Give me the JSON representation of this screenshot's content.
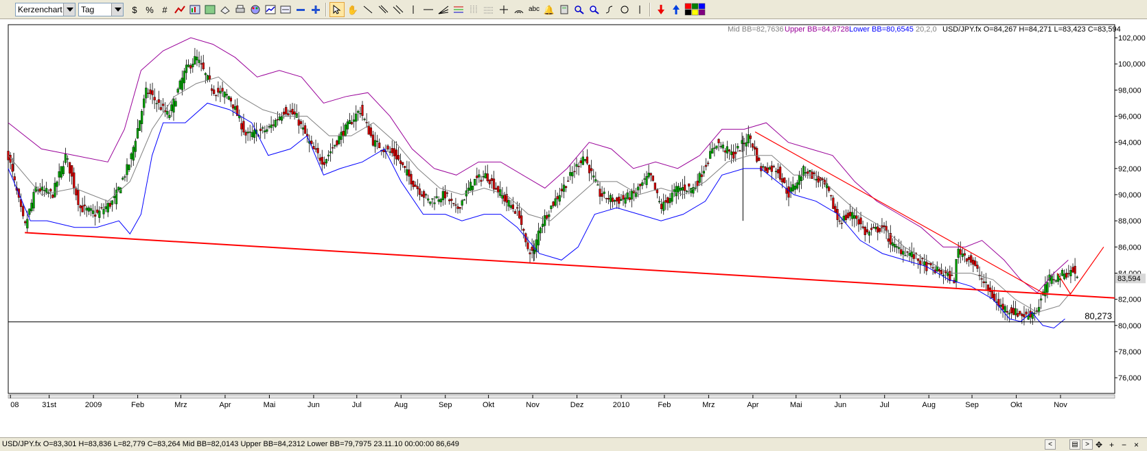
{
  "toolbar": {
    "chart_type": "Kerzenchart",
    "period": "Tag",
    "color_swatches": [
      "#ff0000",
      "#008000",
      "#0000ff",
      "#000000",
      "#ffff00",
      "#800080"
    ]
  },
  "header": {
    "mid_bb": "Mid BB=82,7636",
    "upper_bb": "Upper BB=84,8728",
    "lower_bb": "Lower BB=80,6545",
    "bb_params": "20,2,0",
    "ohlc": "USD/JPY.fx O=84,267 H=84,271 L=83,423 C=83,594"
  },
  "chart_data": {
    "type": "candlestick",
    "symbol": "USD/JPY.fx",
    "ylim": [
      74.8,
      103.0
    ],
    "y_ticks": [
      "102,000",
      "100,000",
      "98,000",
      "96,000",
      "94,000",
      "92,000",
      "90,000",
      "88,000",
      "86,000",
      "84,000",
      "82,000",
      "80,000",
      "78,000",
      "76,000"
    ],
    "x_ticks": [
      {
        "label": "08",
        "pos": 0.002
      },
      {
        "label": "31st",
        "pos": 0.037
      },
      {
        "label": "2009",
        "pos": 0.077
      },
      {
        "label": "Feb",
        "pos": 0.117
      },
      {
        "label": "Mrz",
        "pos": 0.156
      },
      {
        "label": "Apr",
        "pos": 0.196
      },
      {
        "label": "Mai",
        "pos": 0.236
      },
      {
        "label": "Jun",
        "pos": 0.276
      },
      {
        "label": "Jul",
        "pos": 0.315
      },
      {
        "label": "Aug",
        "pos": 0.355
      },
      {
        "label": "Sep",
        "pos": 0.395
      },
      {
        "label": "Okt",
        "pos": 0.434
      },
      {
        "label": "Nov",
        "pos": 0.474
      },
      {
        "label": "Dez",
        "pos": 0.514
      },
      {
        "label": "2010",
        "pos": 0.554
      },
      {
        "label": "Feb",
        "pos": 0.593
      },
      {
        "label": "Mrz",
        "pos": 0.633
      },
      {
        "label": "Apr",
        "pos": 0.673
      },
      {
        "label": "Mai",
        "pos": 0.712
      },
      {
        "label": "Jun",
        "pos": 0.752
      },
      {
        "label": "Jul",
        "pos": 0.792
      },
      {
        "label": "Aug",
        "pos": 0.832
      },
      {
        "label": "Sep",
        "pos": 0.871
      },
      {
        "label": "Okt",
        "pos": 0.911
      },
      {
        "label": "Nov",
        "pos": 0.951
      }
    ],
    "close_path": [
      [
        0.0,
        93.0
      ],
      [
        0.015,
        87.5
      ],
      [
        0.025,
        90.5
      ],
      [
        0.04,
        90.0
      ],
      [
        0.052,
        93.0
      ],
      [
        0.065,
        89.0
      ],
      [
        0.08,
        88.5
      ],
      [
        0.095,
        89.5
      ],
      [
        0.11,
        92.5
      ],
      [
        0.125,
        98.0
      ],
      [
        0.145,
        96.0
      ],
      [
        0.16,
        99.5
      ],
      [
        0.17,
        100.5
      ],
      [
        0.185,
        98.0
      ],
      [
        0.2,
        97.5
      ],
      [
        0.215,
        94.5
      ],
      [
        0.235,
        95.0
      ],
      [
        0.25,
        96.5
      ],
      [
        0.26,
        96.0
      ],
      [
        0.275,
        93.5
      ],
      [
        0.285,
        92.5
      ],
      [
        0.3,
        94.5
      ],
      [
        0.318,
        96.5
      ],
      [
        0.33,
        94.0
      ],
      [
        0.35,
        93.0
      ],
      [
        0.365,
        91.0
      ],
      [
        0.38,
        89.5
      ],
      [
        0.395,
        90.0
      ],
      [
        0.405,
        88.8
      ],
      [
        0.42,
        91.0
      ],
      [
        0.432,
        91.5
      ],
      [
        0.45,
        89.5
      ],
      [
        0.462,
        88.5
      ],
      [
        0.468,
        86.0
      ],
      [
        0.475,
        85.5
      ],
      [
        0.48,
        87.5
      ],
      [
        0.49,
        89.0
      ],
      [
        0.505,
        91.0
      ],
      [
        0.52,
        93.0
      ],
      [
        0.535,
        90.0
      ],
      [
        0.55,
        89.5
      ],
      [
        0.565,
        90.0
      ],
      [
        0.58,
        91.5
      ],
      [
        0.59,
        89.0
      ],
      [
        0.605,
        90.5
      ],
      [
        0.62,
        90.5
      ],
      [
        0.64,
        94.0
      ],
      [
        0.655,
        93.0
      ],
      [
        0.67,
        94.5
      ],
      [
        0.68,
        92.0
      ],
      [
        0.695,
        92.0
      ],
      [
        0.705,
        90.0
      ],
      [
        0.72,
        92.0
      ],
      [
        0.74,
        90.5
      ],
      [
        0.75,
        88.0
      ],
      [
        0.765,
        88.5
      ],
      [
        0.775,
        87.0
      ],
      [
        0.79,
        87.5
      ],
      [
        0.8,
        86.0
      ],
      [
        0.815,
        85.5
      ],
      [
        0.83,
        84.5
      ],
      [
        0.845,
        84.0
      ],
      [
        0.855,
        83.5
      ],
      [
        0.858,
        85.8
      ],
      [
        0.87,
        85.0
      ],
      [
        0.88,
        83.5
      ],
      [
        0.895,
        81.5
      ],
      [
        0.91,
        81.0
      ],
      [
        0.92,
        80.7
      ],
      [
        0.93,
        81.2
      ],
      [
        0.94,
        83.5
      ],
      [
        0.95,
        83.8
      ],
      [
        0.962,
        84.2
      ],
      [
        0.966,
        83.6
      ]
    ],
    "bollinger_upper": [
      [
        0.0,
        95.5
      ],
      [
        0.03,
        93.5
      ],
      [
        0.06,
        93.0
      ],
      [
        0.09,
        92.5
      ],
      [
        0.105,
        95.0
      ],
      [
        0.12,
        99.5
      ],
      [
        0.14,
        101.0
      ],
      [
        0.165,
        102.0
      ],
      [
        0.185,
        101.5
      ],
      [
        0.205,
        100.5
      ],
      [
        0.225,
        99.0
      ],
      [
        0.245,
        99.5
      ],
      [
        0.265,
        99.0
      ],
      [
        0.285,
        97.0
      ],
      [
        0.305,
        97.5
      ],
      [
        0.325,
        97.8
      ],
      [
        0.345,
        96.0
      ],
      [
        0.365,
        93.5
      ],
      [
        0.385,
        92.0
      ],
      [
        0.405,
        91.5
      ],
      [
        0.425,
        92.5
      ],
      [
        0.445,
        92.5
      ],
      [
        0.465,
        91.5
      ],
      [
        0.485,
        90.5
      ],
      [
        0.505,
        92.0
      ],
      [
        0.525,
        94.0
      ],
      [
        0.545,
        93.5
      ],
      [
        0.565,
        92.0
      ],
      [
        0.585,
        92.5
      ],
      [
        0.605,
        92.0
      ],
      [
        0.625,
        93.0
      ],
      [
        0.645,
        95.0
      ],
      [
        0.665,
        95.0
      ],
      [
        0.685,
        95.5
      ],
      [
        0.705,
        94.0
      ],
      [
        0.725,
        93.5
      ],
      [
        0.745,
        93.0
      ],
      [
        0.765,
        91.0
      ],
      [
        0.785,
        89.5
      ],
      [
        0.805,
        88.5
      ],
      [
        0.825,
        87.5
      ],
      [
        0.845,
        86.0
      ],
      [
        0.865,
        86.0
      ],
      [
        0.88,
        86.5
      ],
      [
        0.9,
        85.0
      ],
      [
        0.915,
        83.5
      ],
      [
        0.93,
        82.5
      ],
      [
        0.945,
        84.0
      ],
      [
        0.958,
        85.0
      ]
    ],
    "bollinger_mid": [
      [
        0.0,
        93.0
      ],
      [
        0.03,
        90.0
      ],
      [
        0.06,
        90.5
      ],
      [
        0.09,
        89.5
      ],
      [
        0.11,
        91.0
      ],
      [
        0.13,
        95.0
      ],
      [
        0.15,
        97.5
      ],
      [
        0.17,
        98.5
      ],
      [
        0.19,
        99.0
      ],
      [
        0.21,
        97.5
      ],
      [
        0.23,
        96.5
      ],
      [
        0.25,
        96.0
      ],
      [
        0.27,
        96.0
      ],
      [
        0.29,
        94.5
      ],
      [
        0.31,
        94.5
      ],
      [
        0.33,
        95.5
      ],
      [
        0.35,
        94.0
      ],
      [
        0.37,
        92.0
      ],
      [
        0.39,
        90.5
      ],
      [
        0.41,
        90.0
      ],
      [
        0.43,
        90.5
      ],
      [
        0.45,
        90.0
      ],
      [
        0.47,
        88.5
      ],
      [
        0.49,
        88.0
      ],
      [
        0.51,
        89.5
      ],
      [
        0.53,
        91.0
      ],
      [
        0.55,
        91.0
      ],
      [
        0.57,
        90.0
      ],
      [
        0.59,
        90.5
      ],
      [
        0.61,
        90.0
      ],
      [
        0.63,
        91.0
      ],
      [
        0.65,
        92.5
      ],
      [
        0.67,
        93.0
      ],
      [
        0.69,
        93.0
      ],
      [
        0.71,
        91.5
      ],
      [
        0.73,
        91.5
      ],
      [
        0.75,
        90.0
      ],
      [
        0.77,
        88.5
      ],
      [
        0.79,
        87.5
      ],
      [
        0.81,
        86.0
      ],
      [
        0.83,
        85.0
      ],
      [
        0.85,
        84.0
      ],
      [
        0.87,
        84.0
      ],
      [
        0.89,
        83.5
      ],
      [
        0.91,
        82.0
      ],
      [
        0.93,
        81.0
      ],
      [
        0.95,
        81.5
      ],
      [
        0.96,
        82.5
      ]
    ],
    "bollinger_lower": [
      [
        0.0,
        92.0
      ],
      [
        0.02,
        88.0
      ],
      [
        0.035,
        88.0
      ],
      [
        0.06,
        87.5
      ],
      [
        0.08,
        87.5
      ],
      [
        0.1,
        88.0
      ],
      [
        0.11,
        87.0
      ],
      [
        0.12,
        88.5
      ],
      [
        0.13,
        93.0
      ],
      [
        0.14,
        95.5
      ],
      [
        0.16,
        95.5
      ],
      [
        0.18,
        97.0
      ],
      [
        0.2,
        96.5
      ],
      [
        0.22,
        95.5
      ],
      [
        0.235,
        93.0
      ],
      [
        0.255,
        93.5
      ],
      [
        0.27,
        94.5
      ],
      [
        0.285,
        91.5
      ],
      [
        0.3,
        92.0
      ],
      [
        0.32,
        92.5
      ],
      [
        0.34,
        93.5
      ],
      [
        0.355,
        91.0
      ],
      [
        0.375,
        88.5
      ],
      [
        0.395,
        88.5
      ],
      [
        0.41,
        88.0
      ],
      [
        0.43,
        88.5
      ],
      [
        0.445,
        88.5
      ],
      [
        0.46,
        87.5
      ],
      [
        0.48,
        85.5
      ],
      [
        0.5,
        85.0
      ],
      [
        0.515,
        86.0
      ],
      [
        0.53,
        88.5
      ],
      [
        0.55,
        89.0
      ],
      [
        0.57,
        88.5
      ],
      [
        0.59,
        88.0
      ],
      [
        0.61,
        88.5
      ],
      [
        0.63,
        89.5
      ],
      [
        0.645,
        91.5
      ],
      [
        0.665,
        92.0
      ],
      [
        0.68,
        92.0
      ],
      [
        0.695,
        91.0
      ],
      [
        0.71,
        90.0
      ],
      [
        0.73,
        89.5
      ],
      [
        0.75,
        88.5
      ],
      [
        0.77,
        86.5
      ],
      [
        0.79,
        85.5
      ],
      [
        0.81,
        85.0
      ],
      [
        0.83,
        84.5
      ],
      [
        0.85,
        83.5
      ],
      [
        0.87,
        83.0
      ],
      [
        0.89,
        82.0
      ],
      [
        0.905,
        80.5
      ],
      [
        0.915,
        80.3
      ],
      [
        0.925,
        81.0
      ],
      [
        0.935,
        80.0
      ],
      [
        0.945,
        79.8
      ],
      [
        0.955,
        80.5
      ]
    ],
    "support_line": {
      "start": [
        0.015,
        87.1
      ],
      "end": [
        1.0,
        82.1
      ]
    },
    "resistance_line": {
      "start": [
        0.675,
        94.8
      ],
      "end": [
        0.935,
        82.5
      ]
    },
    "target_arrow": [
      [
        0.948,
        84.0
      ],
      [
        0.96,
        82.4
      ],
      [
        0.99,
        86.0
      ]
    ],
    "horizontal_line": {
      "value": 80.273,
      "label": "80,273"
    },
    "last_price_label": "83,594",
    "last_price": 83.594,
    "colors": {
      "up": "#00a000",
      "down": "#d00000",
      "upper_band": "#990099",
      "mid_band": "#808080",
      "lower_band": "#0000ff",
      "trendline": "#ff0000"
    }
  },
  "status_bar": {
    "text": "USD/JPY.fx O=83,301 H=83,836 L=82,779 C=83,264  Mid BB=82,0143 Upper BB=84,2312 Lower BB=79,7975  23.11.10 00:00:00 86,649"
  }
}
